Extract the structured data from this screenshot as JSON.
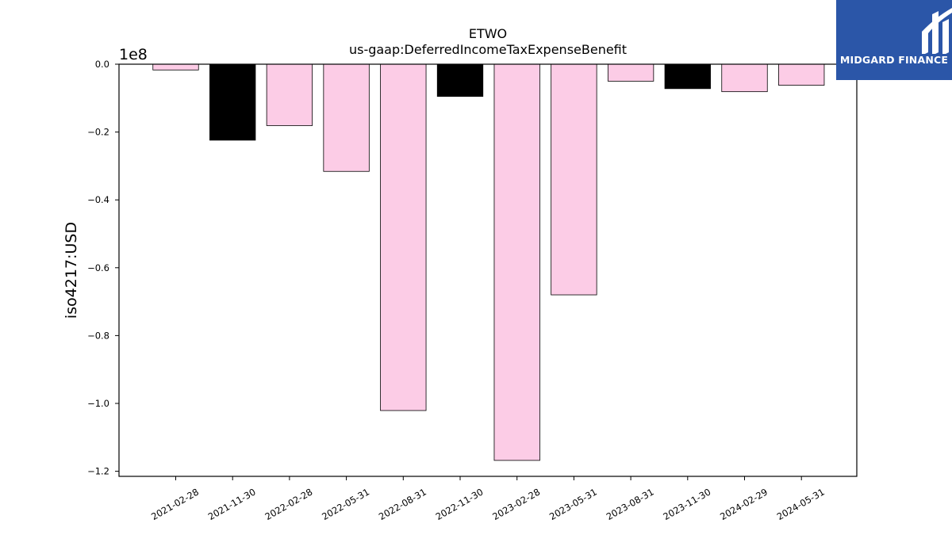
{
  "chart_data": {
    "type": "bar",
    "title": "ETWO",
    "subtitle": "us-gaap:DeferredIncomeTaxExpenseBenefit",
    "xlabel": "",
    "ylabel": "iso4217:USD",
    "y_multiplier_label": "1e8",
    "ylim": [
      -1.215,
      0.0
    ],
    "yticks": [
      0.0,
      -0.2,
      -0.4,
      -0.6,
      -0.8,
      -1.0,
      -1.2
    ],
    "ytick_labels": [
      "0.0",
      "−0.2",
      "−0.4",
      "−0.6",
      "−0.8",
      "−1.0",
      "−1.2"
    ],
    "grid": false,
    "legend": "none",
    "categories": [
      "2021-02-28",
      "2021-11-30",
      "2022-02-28",
      "2022-05-31",
      "2022-08-31",
      "2022-11-30",
      "2023-02-28",
      "2023-05-31",
      "2023-08-31",
      "2023-11-30",
      "2024-02-29",
      "2024-05-31"
    ],
    "values": [
      -0.017,
      -0.224,
      -0.181,
      -0.316,
      -1.021,
      -0.095,
      -1.168,
      -0.68,
      -0.05,
      -0.072,
      -0.081,
      -0.062
    ],
    "bar_colors": [
      "#fccce6",
      "#000000",
      "#fccce6",
      "#fccce6",
      "#fccce6",
      "#000000",
      "#fccce6",
      "#fccce6",
      "#fccce6",
      "#000000",
      "#fccce6",
      "#fccce6"
    ]
  },
  "logo": {
    "text": "MIDGARD FINANCE",
    "background": "#2b56a8"
  }
}
